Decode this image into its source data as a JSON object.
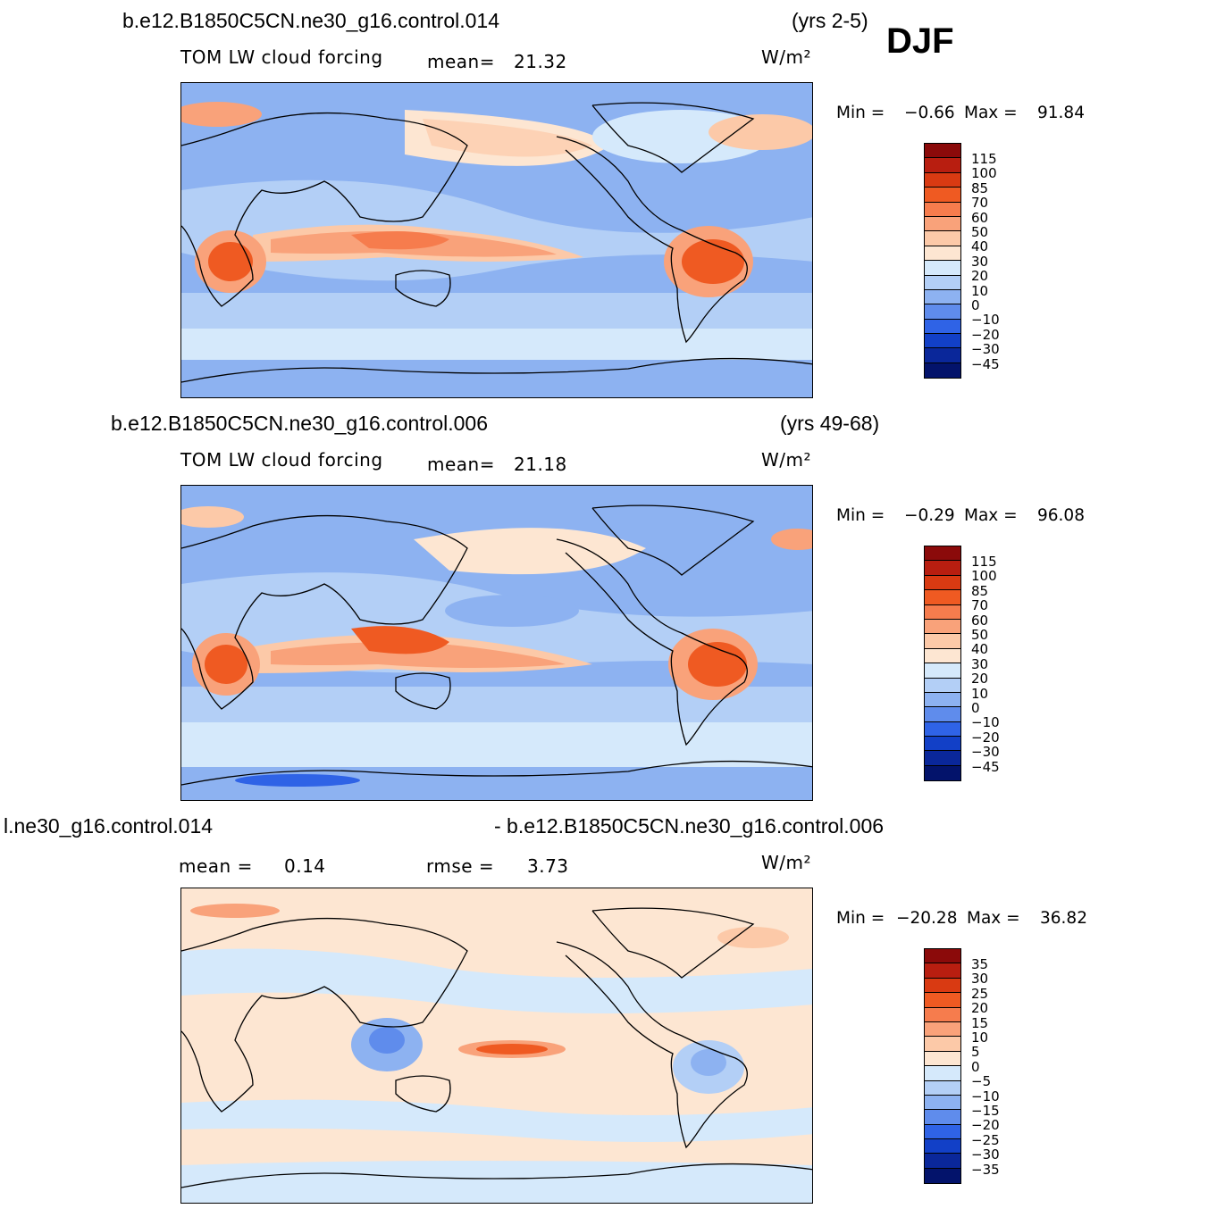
{
  "season": "DJF",
  "units": "W/m²",
  "panels": [
    {
      "case": "b.e12.B1850C5CN.ne30_g16.control.014",
      "years": "(yrs 2-5)",
      "variable": "TOM LW cloud forcing",
      "stat_label": "mean=",
      "stat_value": "21.32",
      "min_label": "Min =",
      "min_value": "−0.66",
      "max_label": "Max =",
      "max_value": "91.84"
    },
    {
      "case": "b.e12.B1850C5CN.ne30_g16.control.006",
      "years": "(yrs 49-68)",
      "variable": "TOM LW cloud forcing",
      "stat_label": "mean=",
      "stat_value": "21.18",
      "min_label": "Min =",
      "min_value": "−0.29",
      "max_label": "Max =",
      "max_value": "96.08"
    },
    {
      "case_left": "l.ne30_g16.control.014",
      "case_right": "- b.e12.B1850C5CN.ne30_g16.control.006",
      "mean_label": "mean =",
      "mean_value": "0.14",
      "rmse_label": "rmse =",
      "rmse_value": "3.73",
      "min_label": "Min =",
      "min_value": "−20.28",
      "max_label": "Max =",
      "max_value": "36.82"
    }
  ],
  "legend_field": {
    "labels": [
      "115",
      "100",
      "85",
      "70",
      "60",
      "50",
      "40",
      "30",
      "20",
      "10",
      "0",
      "−10",
      "−20",
      "−30",
      "−45"
    ],
    "colors": [
      "#8b0a0a",
      "#b81e10",
      "#d93a12",
      "#ef5a22",
      "#f67c4d",
      "#f9a27a",
      "#fcc9a8",
      "#fde6d2",
      "#d5e9fb",
      "#b3cff6",
      "#8db2f1",
      "#5f8cec",
      "#2f63e6",
      "#1240c7",
      "#0a279a",
      "#03136b"
    ]
  },
  "legend_diff": {
    "labels": [
      "35",
      "30",
      "25",
      "20",
      "15",
      "10",
      "5",
      "0",
      "−5",
      "−10",
      "−15",
      "−20",
      "−25",
      "−30",
      "−35"
    ],
    "colors": [
      "#8b0a0a",
      "#b81e10",
      "#d93a12",
      "#ef5a22",
      "#f67c4d",
      "#f9a27a",
      "#fcc9a8",
      "#fde6d2",
      "#d5e9fb",
      "#b3cff6",
      "#8db2f1",
      "#5f8cec",
      "#2f63e6",
      "#1240c7",
      "#0a279a",
      "#03136b"
    ]
  }
}
